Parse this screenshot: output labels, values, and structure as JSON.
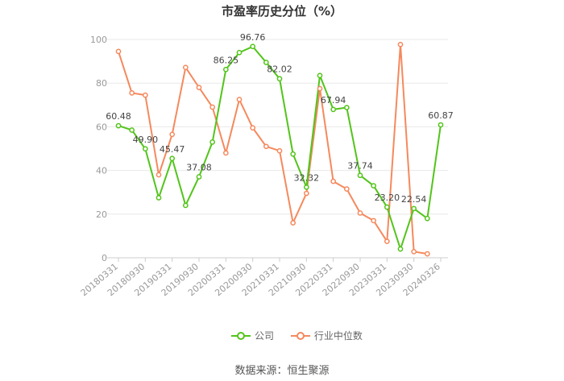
{
  "chart_data": {
    "type": "line",
    "title": "市盈率历史分位（%）",
    "ylim": [
      0,
      100
    ],
    "yticks": [
      0,
      20,
      40,
      60,
      80,
      100
    ],
    "x": [
      "20180331",
      "20180630",
      "20180930",
      "20181231",
      "20190331",
      "20190630",
      "20190930",
      "20191231",
      "20200331",
      "20200630",
      "20200930",
      "20201231",
      "20210331",
      "20210630",
      "20210930",
      "20211231",
      "20220331",
      "20220630",
      "20220930",
      "20221231",
      "20230331",
      "20230630",
      "20230930",
      "20231231",
      "20240326"
    ],
    "xtick_labels": [
      "20180331",
      "20180930",
      "20190331",
      "20190930",
      "20200331",
      "20200930",
      "20210331",
      "20210930",
      "20220331",
      "20220930",
      "20230331",
      "20230930",
      "20240326"
    ],
    "series": [
      {
        "name": "公司",
        "color": "#52c41a",
        "values": [
          60.48,
          58.5,
          49.9,
          27.5,
          45.47,
          24.0,
          37.08,
          53.0,
          86.25,
          94.0,
          96.76,
          89.5,
          82.02,
          47.5,
          32.32,
          83.5,
          67.94,
          68.8,
          37.74,
          33.0,
          23.2,
          4.0,
          22.54,
          18.0,
          60.87
        ],
        "data_labels": [
          {
            "index": 0,
            "text": "60.48"
          },
          {
            "index": 2,
            "text": "49.90"
          },
          {
            "index": 4,
            "text": "45.47"
          },
          {
            "index": 6,
            "text": "37.08"
          },
          {
            "index": 8,
            "text": "86.25"
          },
          {
            "index": 10,
            "text": "96.76"
          },
          {
            "index": 12,
            "text": "82.02"
          },
          {
            "index": 14,
            "text": "32.32"
          },
          {
            "index": 16,
            "text": "67.94"
          },
          {
            "index": 18,
            "text": "37.74"
          },
          {
            "index": 20,
            "text": "23.20"
          },
          {
            "index": 22,
            "text": "22.54"
          },
          {
            "index": 24,
            "text": "60.87"
          }
        ]
      },
      {
        "name": "行业中位数",
        "color": "#f5895d",
        "values": [
          94.5,
          75.5,
          74.5,
          38.0,
          56.5,
          87.2,
          78.0,
          69.0,
          48.0,
          72.5,
          59.5,
          51.0,
          49.0,
          16.0,
          29.5,
          77.5,
          35.0,
          31.5,
          20.5,
          17.0,
          7.5,
          97.7,
          2.8,
          1.8,
          null
        ]
      }
    ],
    "legend_position": "bottom"
  },
  "source_text": "数据来源：恒生聚源"
}
